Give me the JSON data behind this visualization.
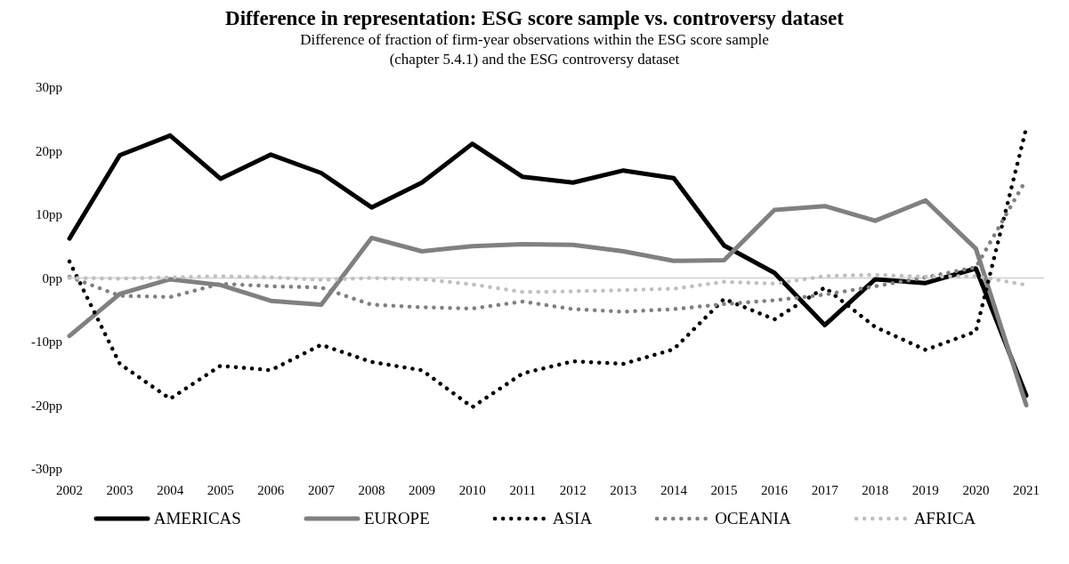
{
  "chart_data": {
    "type": "line",
    "title": "Difference in representation: ESG score sample vs. controversy dataset",
    "subtitle": "Difference of fraction of firm-year observations within the ESG score sample\n(chapter 5.4.1) and the ESG controversy dataset",
    "categories": [
      "2002",
      "2003",
      "2004",
      "2005",
      "2006",
      "2007",
      "2008",
      "2009",
      "2010",
      "2011",
      "2012",
      "2013",
      "2014",
      "2015",
      "2016",
      "2017",
      "2018",
      "2019",
      "2020",
      "2021"
    ],
    "series": [
      {
        "name": "AMERICAS",
        "color": "#000000",
        "line_style": "solid",
        "values": [
          6.2,
          19.3,
          22.4,
          15.6,
          19.4,
          16.5,
          11.1,
          15.0,
          21.1,
          15.9,
          15.0,
          16.9,
          15.7,
          5.1,
          0.8,
          -7.4,
          -0.2,
          -0.8,
          1.5,
          -18.5
        ]
      },
      {
        "name": "EUROPE",
        "color": "#808080",
        "line_style": "solid",
        "values": [
          -9.1,
          -2.5,
          -0.2,
          -1.1,
          -3.6,
          -4.2,
          6.3,
          4.2,
          5.0,
          5.3,
          5.2,
          4.2,
          2.7,
          2.8,
          10.7,
          11.3,
          9.0,
          12.2,
          4.6,
          -20.0
        ]
      },
      {
        "name": "ASIA",
        "color": "#000000",
        "line_style": "dotted",
        "values": [
          2.6,
          -13.5,
          -19.0,
          -13.8,
          -14.5,
          -10.5,
          -13.2,
          -14.5,
          -20.3,
          -15.0,
          -13.1,
          -13.5,
          -11.2,
          -3.3,
          -6.5,
          -1.5,
          -7.7,
          -11.3,
          -8.4,
          23.6
        ]
      },
      {
        "name": "OCEANIA",
        "color": "#808080",
        "line_style": "dotted",
        "values": [
          0.2,
          -2.8,
          -3.0,
          -0.9,
          -1.3,
          -1.5,
          -4.2,
          -4.6,
          -4.8,
          -3.7,
          -4.9,
          -5.3,
          -4.9,
          -4.1,
          -3.5,
          -2.6,
          -1.3,
          0.1,
          1.7,
          15.5
        ]
      },
      {
        "name": "AFRICA",
        "color": "#c0c0c0",
        "line_style": "dotted",
        "values": [
          0.0,
          -0.1,
          0.1,
          0.3,
          0.1,
          -0.3,
          0.0,
          -0.2,
          -1.0,
          -2.2,
          -2.1,
          -1.9,
          -1.7,
          -0.6,
          -0.9,
          0.3,
          0.5,
          0.2,
          0.3,
          -1.1
        ]
      }
    ],
    "ylim": [
      -30,
      30
    ],
    "yticks": [
      {
        "value": -30,
        "label": "-30pp"
      },
      {
        "value": -20,
        "label": "-20pp"
      },
      {
        "value": -10,
        "label": "-10pp"
      },
      {
        "value": 0,
        "label": "0pp"
      },
      {
        "value": 10,
        "label": "10pp"
      },
      {
        "value": 20,
        "label": "20pp"
      },
      {
        "value": 30,
        "label": "30pp"
      }
    ],
    "ref_lines": [
      {
        "axis": "y",
        "value": 0,
        "color": "#d9d9d9"
      }
    ],
    "grid": false,
    "legend": "bottom"
  }
}
